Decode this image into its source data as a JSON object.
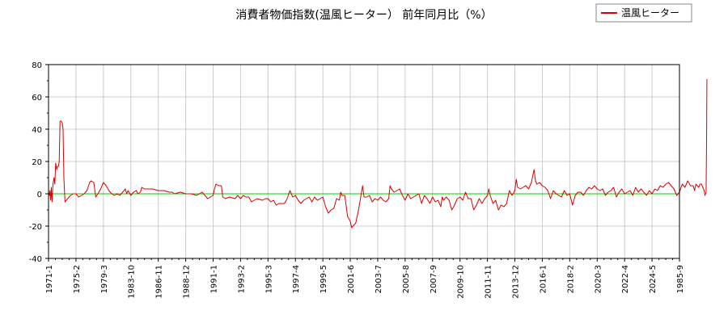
{
  "chart_data": {
    "type": "line",
    "title": "消費者物価指数(温風ヒーター） 前年同月比（%）",
    "xlabel": "",
    "ylabel": "",
    "ylim": [
      -40,
      80
    ],
    "yticks": [
      -40,
      -20,
      0,
      20,
      40,
      60,
      80
    ],
    "x_tick_labels": [
      "1971-1",
      "1975-2",
      "1979-3",
      "1983-10",
      "1986-11",
      "1988-12",
      "1991-1",
      "1993-2",
      "1995-3",
      "1997-4",
      "1999-5",
      "2001-6",
      "2003-7",
      "2005-8",
      "2007-9",
      "2009-10",
      "2011-11",
      "2013-12",
      "2016-1",
      "2018-2",
      "2020-3",
      "2022-4",
      "2024-5",
      "1985-9"
    ],
    "grid": true,
    "legend": {
      "position": "top-right",
      "entries": [
        "温風ヒーター"
      ]
    },
    "reference_line": {
      "y": 0,
      "color": "#00cc00"
    },
    "series": [
      {
        "name": "温風ヒーター",
        "color": "#dd0000",
        "points": [
          [
            0,
            1
          ],
          [
            0.03,
            -1
          ],
          [
            0.05,
            2
          ],
          [
            0.08,
            -4
          ],
          [
            0.1,
            4
          ],
          [
            0.13,
            -5
          ],
          [
            0.16,
            6
          ],
          [
            0.2,
            10
          ],
          [
            0.23,
            6
          ],
          [
            0.26,
            19
          ],
          [
            0.3,
            15
          ],
          [
            0.33,
            17
          ],
          [
            0.36,
            17
          ],
          [
            0.39,
            20
          ],
          [
            0.42,
            45
          ],
          [
            0.46,
            45
          ],
          [
            0.5,
            44
          ],
          [
            0.53,
            40
          ],
          [
            0.56,
            10
          ],
          [
            0.6,
            -5
          ],
          [
            0.65,
            -4
          ],
          [
            0.7,
            -3
          ],
          [
            0.8,
            -1
          ],
          [
            0.9,
            0
          ],
          [
            1.0,
            0
          ],
          [
            1.1,
            -2
          ],
          [
            1.2,
            -1
          ],
          [
            1.3,
            0
          ],
          [
            1.4,
            2
          ],
          [
            1.5,
            7
          ],
          [
            1.55,
            8
          ],
          [
            1.65,
            7
          ],
          [
            1.72,
            -2
          ],
          [
            1.8,
            0
          ],
          [
            1.9,
            3
          ],
          [
            2.0,
            7
          ],
          [
            2.1,
            5
          ],
          [
            2.2,
            2
          ],
          [
            2.3,
            0
          ],
          [
            2.4,
            -1
          ],
          [
            2.5,
            0
          ],
          [
            2.6,
            -1
          ],
          [
            2.7,
            1
          ],
          [
            2.8,
            3
          ],
          [
            2.85,
            0
          ],
          [
            2.9,
            2
          ],
          [
            3.0,
            -1
          ],
          [
            3.1,
            1
          ],
          [
            3.2,
            2
          ],
          [
            3.25,
            0
          ],
          [
            3.35,
            1
          ],
          [
            3.4,
            4
          ],
          [
            3.5,
            3
          ],
          [
            3.6,
            3
          ],
          [
            3.8,
            3
          ],
          [
            4.0,
            2
          ],
          [
            4.2,
            2
          ],
          [
            4.4,
            1
          ],
          [
            4.5,
            1
          ],
          [
            4.6,
            0
          ],
          [
            4.8,
            1
          ],
          [
            5.0,
            0
          ],
          [
            5.2,
            0
          ],
          [
            5.4,
            -1
          ],
          [
            5.6,
            1
          ],
          [
            5.7,
            -1
          ],
          [
            5.8,
            -3
          ],
          [
            5.9,
            -2
          ],
          [
            6.0,
            -1
          ],
          [
            6.05,
            3
          ],
          [
            6.1,
            6
          ],
          [
            6.2,
            5
          ],
          [
            6.3,
            5
          ],
          [
            6.35,
            -2
          ],
          [
            6.45,
            -3
          ],
          [
            6.6,
            -2
          ],
          [
            6.8,
            -3
          ],
          [
            6.9,
            -1
          ],
          [
            7.0,
            -3
          ],
          [
            7.1,
            -1
          ],
          [
            7.2,
            -2
          ],
          [
            7.3,
            -2
          ],
          [
            7.4,
            -5
          ],
          [
            7.5,
            -4
          ],
          [
            7.6,
            -3
          ],
          [
            7.8,
            -4
          ],
          [
            7.9,
            -3
          ],
          [
            8.0,
            -3
          ],
          [
            8.1,
            -5
          ],
          [
            8.2,
            -4
          ],
          [
            8.3,
            -7
          ],
          [
            8.4,
            -6
          ],
          [
            8.6,
            -6
          ],
          [
            8.7,
            -3
          ],
          [
            8.8,
            2
          ],
          [
            8.9,
            -2
          ],
          [
            9.0,
            -1
          ],
          [
            9.1,
            -4
          ],
          [
            9.2,
            -6
          ],
          [
            9.3,
            -4
          ],
          [
            9.4,
            -3
          ],
          [
            9.5,
            -2
          ],
          [
            9.6,
            -5
          ],
          [
            9.7,
            -2
          ],
          [
            9.8,
            -4
          ],
          [
            9.9,
            -3
          ],
          [
            10.0,
            -2
          ],
          [
            10.1,
            -8
          ],
          [
            10.2,
            -12
          ],
          [
            10.3,
            -10
          ],
          [
            10.4,
            -9
          ],
          [
            10.5,
            -3
          ],
          [
            10.6,
            -4
          ],
          [
            10.65,
            1
          ],
          [
            10.7,
            -1
          ],
          [
            10.8,
            -1
          ],
          [
            10.9,
            -14
          ],
          [
            11.0,
            -17
          ],
          [
            11.05,
            -21
          ],
          [
            11.1,
            -20
          ],
          [
            11.2,
            -18
          ],
          [
            11.3,
            -10
          ],
          [
            11.4,
            0
          ],
          [
            11.45,
            5
          ],
          [
            11.5,
            -2
          ],
          [
            11.6,
            -2
          ],
          [
            11.7,
            -1
          ],
          [
            11.8,
            -5
          ],
          [
            11.9,
            -3
          ],
          [
            12.0,
            -4
          ],
          [
            12.1,
            -2
          ],
          [
            12.2,
            -4
          ],
          [
            12.3,
            -5
          ],
          [
            12.4,
            -3
          ],
          [
            12.45,
            5
          ],
          [
            12.5,
            3
          ],
          [
            12.6,
            1
          ],
          [
            12.7,
            2
          ],
          [
            12.8,
            3
          ],
          [
            12.9,
            -1
          ],
          [
            13.0,
            -4
          ],
          [
            13.1,
            0
          ],
          [
            13.2,
            -3
          ],
          [
            13.3,
            -2
          ],
          [
            13.4,
            -1
          ],
          [
            13.5,
            0
          ],
          [
            13.6,
            -6
          ],
          [
            13.7,
            -1
          ],
          [
            13.8,
            -3
          ],
          [
            13.9,
            -6
          ],
          [
            14.0,
            -2
          ],
          [
            14.1,
            -5
          ],
          [
            14.2,
            -4
          ],
          [
            14.3,
            -8
          ],
          [
            14.35,
            -2
          ],
          [
            14.4,
            -4
          ],
          [
            14.5,
            -2
          ],
          [
            14.6,
            -4
          ],
          [
            14.7,
            -10
          ],
          [
            14.8,
            -7
          ],
          [
            14.9,
            -3
          ],
          [
            15.0,
            -2
          ],
          [
            15.1,
            -4
          ],
          [
            15.2,
            1
          ],
          [
            15.3,
            -3
          ],
          [
            15.4,
            -3
          ],
          [
            15.5,
            -10
          ],
          [
            15.6,
            -7
          ],
          [
            15.7,
            -3
          ],
          [
            15.8,
            -6
          ],
          [
            15.9,
            -3
          ],
          [
            16.0,
            -1
          ],
          [
            16.05,
            3
          ],
          [
            16.1,
            -1
          ],
          [
            16.2,
            -6
          ],
          [
            16.3,
            -4
          ],
          [
            16.4,
            -10
          ],
          [
            16.5,
            -7
          ],
          [
            16.6,
            -8
          ],
          [
            16.7,
            -6
          ],
          [
            16.75,
            -2
          ],
          [
            16.8,
            2
          ],
          [
            16.9,
            -1
          ],
          [
            17.0,
            2
          ],
          [
            17.05,
            9
          ],
          [
            17.1,
            4
          ],
          [
            17.2,
            3
          ],
          [
            17.3,
            4
          ],
          [
            17.4,
            5
          ],
          [
            17.5,
            3
          ],
          [
            17.6,
            7
          ],
          [
            17.7,
            15
          ],
          [
            17.75,
            8
          ],
          [
            17.8,
            6
          ],
          [
            17.9,
            7
          ],
          [
            18.0,
            5
          ],
          [
            18.1,
            4
          ],
          [
            18.2,
            2
          ],
          [
            18.3,
            -3
          ],
          [
            18.4,
            2
          ],
          [
            18.5,
            0
          ],
          [
            18.6,
            -1
          ],
          [
            18.7,
            -2
          ],
          [
            18.8,
            2
          ],
          [
            18.9,
            -1
          ],
          [
            19.0,
            0
          ],
          [
            19.1,
            -7
          ],
          [
            19.2,
            -1
          ],
          [
            19.3,
            1
          ],
          [
            19.4,
            1
          ],
          [
            19.5,
            -1
          ],
          [
            19.6,
            2
          ],
          [
            19.7,
            4
          ],
          [
            19.8,
            3
          ],
          [
            19.9,
            5
          ],
          [
            20.0,
            3
          ],
          [
            20.1,
            2
          ],
          [
            20.2,
            3
          ],
          [
            20.3,
            -1
          ],
          [
            20.4,
            1
          ],
          [
            20.5,
            2
          ],
          [
            20.6,
            4
          ],
          [
            20.7,
            -2
          ],
          [
            20.8,
            1
          ],
          [
            20.9,
            3
          ],
          [
            21.0,
            0
          ],
          [
            21.1,
            1
          ],
          [
            21.2,
            2
          ],
          [
            21.3,
            -1
          ],
          [
            21.4,
            4
          ],
          [
            21.5,
            1
          ],
          [
            21.6,
            3
          ],
          [
            21.7,
            1
          ],
          [
            21.8,
            -1
          ],
          [
            21.9,
            2
          ],
          [
            22.0,
            0
          ],
          [
            22.1,
            3
          ],
          [
            22.2,
            2
          ],
          [
            22.3,
            5
          ],
          [
            22.4,
            4
          ],
          [
            22.5,
            6
          ],
          [
            22.6,
            7
          ],
          [
            22.7,
            5
          ],
          [
            22.8,
            3
          ],
          [
            22.9,
            -1
          ],
          [
            23.0,
            1
          ],
          [
            23.1,
            6
          ],
          [
            23.2,
            4
          ],
          [
            23.3,
            8
          ],
          [
            23.4,
            5
          ],
          [
            23.5,
            5
          ],
          [
            23.55,
            2
          ],
          [
            23.6,
            6
          ],
          [
            23.65,
            5
          ],
          [
            23.7,
            4
          ],
          [
            23.75,
            6
          ],
          [
            23.8,
            6
          ],
          [
            23.85,
            4
          ],
          [
            23.9,
            2
          ],
          [
            23.93,
            -1
          ],
          [
            23.95,
            0
          ],
          [
            23.97,
            1
          ],
          [
            23.99,
            36
          ],
          [
            24.0,
            71
          ]
        ]
      }
    ]
  }
}
